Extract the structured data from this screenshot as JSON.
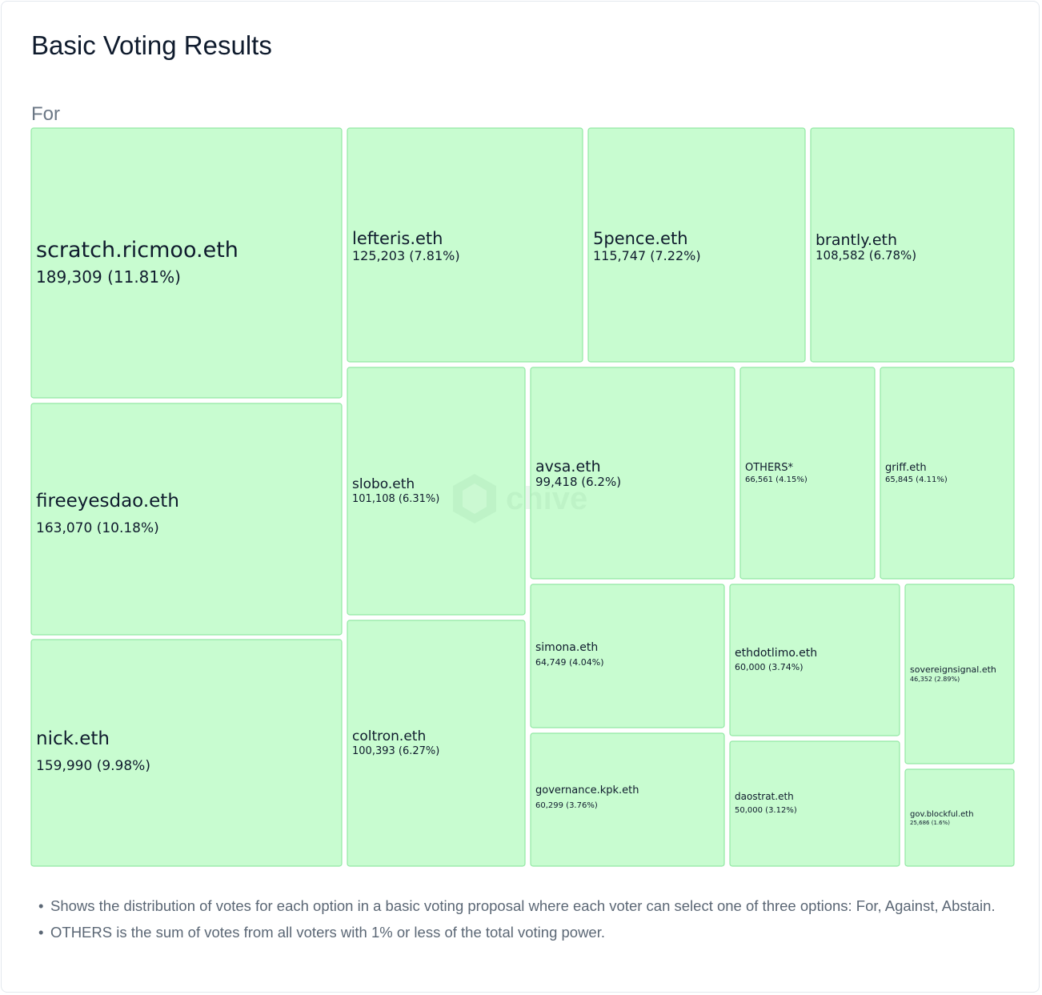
{
  "title": "Basic Voting Results",
  "watermark": "chive",
  "colors": {
    "tile_fill": "#c8fcd0",
    "tile_border": "#92e8a4",
    "text": "#0f1b2d"
  },
  "chart_data": {
    "type": "treemap",
    "series_name": "For",
    "items": [
      {
        "label": "scratch.ricmoo.eth",
        "value_text": "189,309 (11.81%)",
        "value": 189309,
        "percent": 11.81
      },
      {
        "label": "fireeyesdao.eth",
        "value_text": "163,070 (10.18%)",
        "value": 163070,
        "percent": 10.18
      },
      {
        "label": "nick.eth",
        "value_text": "159,990 (9.98%)",
        "value": 159990,
        "percent": 9.98
      },
      {
        "label": "lefteris.eth",
        "value_text": "125,203 (7.81%)",
        "value": 125203,
        "percent": 7.81
      },
      {
        "label": "5pence.eth",
        "value_text": "115,747 (7.22%)",
        "value": 115747,
        "percent": 7.22
      },
      {
        "label": "brantly.eth",
        "value_text": "108,582 (6.78%)",
        "value": 108582,
        "percent": 6.78
      },
      {
        "label": "slobo.eth",
        "value_text": "101,108 (6.31%)",
        "value": 101108,
        "percent": 6.31
      },
      {
        "label": "coltron.eth",
        "value_text": "100,393 (6.27%)",
        "value": 100393,
        "percent": 6.27
      },
      {
        "label": "avsa.eth",
        "value_text": "99,418 (6.2%)",
        "value": 99418,
        "percent": 6.2
      },
      {
        "label": "OTHERS*",
        "value_text": "66,561 (4.15%)",
        "value": 66561,
        "percent": 4.15
      },
      {
        "label": "griff.eth",
        "value_text": "65,845 (4.11%)",
        "value": 65845,
        "percent": 4.11
      },
      {
        "label": "simona.eth",
        "value_text": "64,749 (4.04%)",
        "value": 64749,
        "percent": 4.04
      },
      {
        "label": "governance.kpk.eth",
        "value_text": "60,299 (3.76%)",
        "value": 60299,
        "percent": 3.76
      },
      {
        "label": "ethdotlimo.eth",
        "value_text": "60,000 (3.74%)",
        "value": 60000,
        "percent": 3.74
      },
      {
        "label": "daostrat.eth",
        "value_text": "50,000 (3.12%)",
        "value": 50000,
        "percent": 3.12
      },
      {
        "label": "sovereignsignal.eth",
        "value_text": "46,352 (2.89%)",
        "value": 46352,
        "percent": 2.89
      },
      {
        "label": "gov.blockful.eth",
        "value_text": "25,686 (1.6%)",
        "value": 25686,
        "percent": 1.6
      }
    ]
  },
  "notes": [
    "Shows the distribution of votes for each option in a basic voting proposal where each voter can select one of three options: For, Against, Abstain.",
    "OTHERS is the sum of votes from all voters with 1% or less of the total voting power."
  ]
}
